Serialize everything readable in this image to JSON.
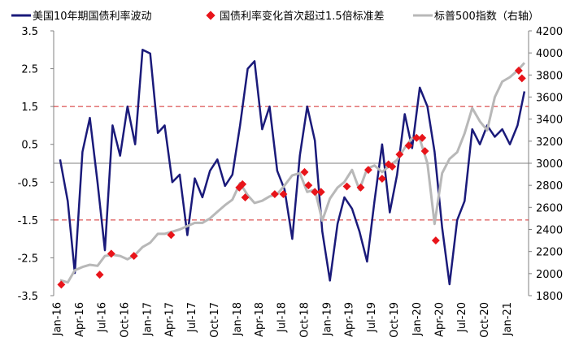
{
  "chart_data": {
    "type": "line",
    "series": [
      {
        "name": "美国10年期国债利率波动",
        "axis": "left",
        "color": "#1a1a7a",
        "x": [
          "2016-01",
          "2016-02",
          "2016-03",
          "2016-04",
          "2016-05",
          "2016-06",
          "2016-07",
          "2016-08",
          "2016-09",
          "2016-10",
          "2016-11",
          "2016-12",
          "2017-01",
          "2017-02",
          "2017-03",
          "2017-04",
          "2017-05",
          "2017-06",
          "2017-07",
          "2017-08",
          "2017-09",
          "2017-10",
          "2017-11",
          "2017-12",
          "2018-01",
          "2018-02",
          "2018-03",
          "2018-04",
          "2018-05",
          "2018-06",
          "2018-07",
          "2018-08",
          "2018-09",
          "2018-10",
          "2018-11",
          "2018-12",
          "2019-01",
          "2019-02",
          "2019-03",
          "2019-04",
          "2019-05",
          "2019-06",
          "2019-07",
          "2019-08",
          "2019-09",
          "2019-10",
          "2019-11",
          "2019-12",
          "2020-01",
          "2020-02",
          "2020-03",
          "2020-04",
          "2020-05",
          "2020-06",
          "2020-07",
          "2020-08",
          "2020-09",
          "2020-10",
          "2020-11",
          "2020-12",
          "2021-01",
          "2021-02",
          "2021-03"
        ],
        "values": [
          0.1,
          -1.0,
          -2.9,
          0.3,
          1.2,
          -0.5,
          -2.3,
          1.0,
          0.2,
          1.5,
          0.5,
          3.0,
          2.9,
          0.8,
          1.0,
          -0.5,
          -0.3,
          -1.9,
          -0.4,
          -0.9,
          -0.2,
          0.1,
          -0.6,
          -0.3,
          1.0,
          2.5,
          2.7,
          0.9,
          1.5,
          -0.2,
          -0.7,
          -2.0,
          0.2,
          1.5,
          0.6,
          -1.8,
          -3.1,
          -1.6,
          -0.9,
          -1.2,
          -1.8,
          -2.6,
          -1.0,
          0.5,
          -1.3,
          -0.3,
          1.3,
          0.4,
          2.0,
          1.5,
          0.3,
          -1.7,
          -3.2,
          -1.5,
          -1.0,
          0.9,
          0.5,
          1.0,
          0.7,
          0.9,
          0.5,
          1.0,
          1.9
        ]
      },
      {
        "name": "标普500指数（右轴）",
        "axis": "right",
        "color": "#b8b8b8",
        "x": [
          "2016-01",
          "2016-02",
          "2016-03",
          "2016-04",
          "2016-05",
          "2016-06",
          "2016-07",
          "2016-08",
          "2016-09",
          "2016-10",
          "2016-11",
          "2016-12",
          "2017-01",
          "2017-02",
          "2017-03",
          "2017-04",
          "2017-05",
          "2017-06",
          "2017-07",
          "2017-08",
          "2017-09",
          "2017-10",
          "2017-11",
          "2017-12",
          "2018-01",
          "2018-02",
          "2018-03",
          "2018-04",
          "2018-05",
          "2018-06",
          "2018-07",
          "2018-08",
          "2018-09",
          "2018-10",
          "2018-11",
          "2018-12",
          "2019-01",
          "2019-02",
          "2019-03",
          "2019-04",
          "2019-05",
          "2019-06",
          "2019-07",
          "2019-08",
          "2019-09",
          "2019-10",
          "2019-11",
          "2019-12",
          "2020-01",
          "2020-02",
          "2020-03",
          "2020-04",
          "2020-05",
          "2020-06",
          "2020-07",
          "2020-08",
          "2020-09",
          "2020-10",
          "2020-11",
          "2020-12",
          "2021-01",
          "2021-02",
          "2021-03"
        ],
        "values": [
          1940,
          1920,
          2030,
          2060,
          2080,
          2070,
          2160,
          2170,
          2160,
          2130,
          2170,
          2240,
          2280,
          2360,
          2360,
          2380,
          2400,
          2430,
          2460,
          2460,
          2500,
          2560,
          2620,
          2670,
          2820,
          2710,
          2640,
          2660,
          2700,
          2720,
          2800,
          2890,
          2910,
          2740,
          2760,
          2480,
          2680,
          2780,
          2830,
          2940,
          2760,
          2950,
          2980,
          2920,
          2980,
          3030,
          3140,
          3230,
          3220,
          3000,
          2450,
          2910,
          3040,
          3100,
          3270,
          3500,
          3380,
          3300,
          3600,
          3740,
          3780,
          3840,
          3910
        ]
      }
    ],
    "markers": {
      "name": "国债利率变化首次超过1.5倍标准差",
      "color": "#e8141a",
      "points": [
        {
          "x": "2016-01-20",
          "y": 1900
        },
        {
          "x": "2016-06-24",
          "y": 1990
        },
        {
          "x": "2016-08-10",
          "y": 2180
        },
        {
          "x": "2016-11-10",
          "y": 2160
        },
        {
          "x": "2017-04-10",
          "y": 2350
        },
        {
          "x": "2018-01-12",
          "y": 2780
        },
        {
          "x": "2018-01-25",
          "y": 2810
        },
        {
          "x": "2018-02-05",
          "y": 2690
        },
        {
          "x": "2018-06-05",
          "y": 2720
        },
        {
          "x": "2018-07-10",
          "y": 2720
        },
        {
          "x": "2018-10-04",
          "y": 2920
        },
        {
          "x": "2018-10-20",
          "y": 2800
        },
        {
          "x": "2018-11-15",
          "y": 2740
        },
        {
          "x": "2018-12-10",
          "y": 2740
        },
        {
          "x": "2019-03-25",
          "y": 2790
        },
        {
          "x": "2019-05-20",
          "y": 2780
        },
        {
          "x": "2019-06-20",
          "y": 2940
        },
        {
          "x": "2019-08-15",
          "y": 2860
        },
        {
          "x": "2019-09-10",
          "y": 2990
        },
        {
          "x": "2019-09-25",
          "y": 2970
        },
        {
          "x": "2019-10-25",
          "y": 3080
        },
        {
          "x": "2019-12-01",
          "y": 3160
        },
        {
          "x": "2020-01-02",
          "y": 3230
        },
        {
          "x": "2020-01-25",
          "y": 3230
        },
        {
          "x": "2020-02-05",
          "y": 3110
        },
        {
          "x": "2020-03-20",
          "y": 2300
        },
        {
          "x": "2021-02-20",
          "y": 3840
        },
        {
          "x": "2021-03-05",
          "y": 3770
        }
      ]
    },
    "reference_lines": [
      1.5,
      -1.5
    ],
    "zero_line": 0,
    "y_left": {
      "min": -3.5,
      "max": 3.5,
      "ticks": [
        "3.5",
        "2.5",
        "1.5",
        "0.5",
        "-0.5",
        "-1.5",
        "-2.5",
        "-3.5"
      ]
    },
    "y_right": {
      "min": 1800,
      "max": 4200,
      "ticks": [
        "4200",
        "4000",
        "3800",
        "3600",
        "3400",
        "3200",
        "3000",
        "2800",
        "2600",
        "2400",
        "2200",
        "2000",
        "1800"
      ]
    },
    "x_ticks": [
      "Jan-16",
      "Apr-16",
      "Jul-16",
      "Oct-16",
      "Jan-17",
      "Apr-17",
      "Jul-17",
      "Oct-17",
      "Jan-18",
      "Apr-18",
      "Jul-18",
      "Oct-18",
      "Jan-19",
      "Apr-19",
      "Jul-19",
      "Oct-19",
      "Jan-20",
      "Apr-20",
      "Jul-20",
      "Oct-20",
      "Jan-21"
    ],
    "legend": {
      "position": "top"
    }
  }
}
